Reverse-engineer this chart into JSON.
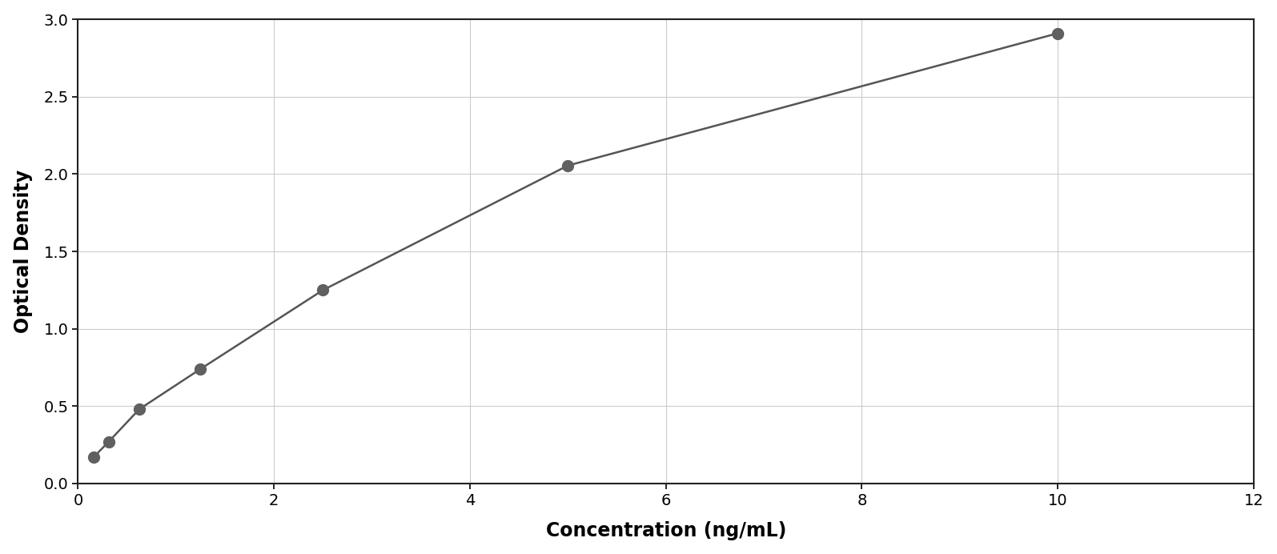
{
  "x_data": [
    0.156,
    0.313,
    0.625,
    1.25,
    2.5,
    5.0,
    10.0
  ],
  "y_data": [
    0.168,
    0.27,
    0.48,
    0.74,
    1.25,
    2.055,
    2.91
  ],
  "xlabel": "Concentration (ng/mL)",
  "ylabel": "Optical Density",
  "xlim": [
    0,
    12
  ],
  "ylim": [
    0,
    3.0
  ],
  "xticks": [
    0,
    2,
    4,
    6,
    8,
    10,
    12
  ],
  "yticks": [
    0,
    0.5,
    1.0,
    1.5,
    2.0,
    2.5,
    3.0
  ],
  "data_color": "#606060",
  "line_color": "#555555",
  "background_color": "#ffffff",
  "plot_bg_color": "#ffffff",
  "grid_color": "#cccccc",
  "marker_size": 10,
  "line_width": 1.8,
  "xlabel_fontsize": 17,
  "ylabel_fontsize": 17,
  "tick_fontsize": 14,
  "xlabel_fontweight": "bold",
  "ylabel_fontweight": "bold",
  "border_color": "#222222",
  "border_linewidth": 1.5
}
